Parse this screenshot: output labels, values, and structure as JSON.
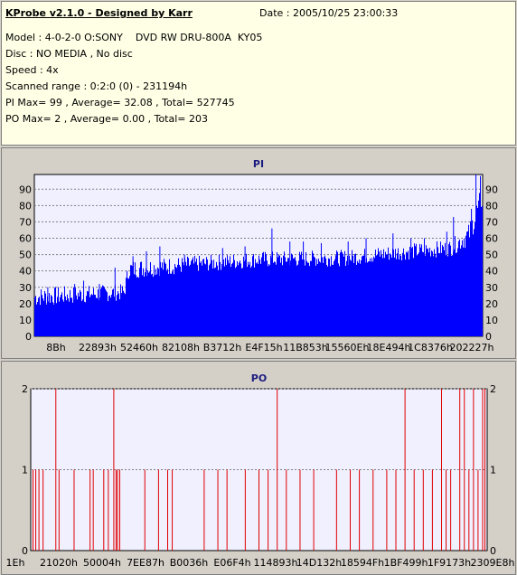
{
  "header": {
    "title": "KProbe v2.1.0 - Designed by Karr",
    "date": "Date : 2005/10/25 23:00:33",
    "model": "Model : 4-0-2-0 O:SONY    DVD RW DRU-800A  KY05",
    "disc": "Disc : NO MEDIA , No disc",
    "speed": "Speed : 4x",
    "range": "Scanned range : 0:2:0 (0) - 231194h",
    "pi_stats": "PI Max= 99 , Average= 32.08 , Total= 527745",
    "po_stats": "PO Max= 2 , Average= 0.00 , Total= 203"
  },
  "colors": {
    "pi_bar": "#0000ff",
    "po_bar": "#e00000",
    "plot_bg": "#f0f0ff",
    "title": "#1c1c80"
  },
  "chart_data": [
    {
      "type": "bar",
      "title": "PI",
      "ylim": [
        0,
        99
      ],
      "yticks": [
        0,
        10,
        20,
        30,
        40,
        50,
        60,
        70,
        80,
        90
      ],
      "grid": true,
      "xtick_labels": [
        "8Bh",
        "22893h",
        "52460h",
        "82108h",
        "B3712h",
        "E4F15h",
        "11B853h",
        "15560Eh",
        "18E494h",
        "1C8376h",
        "202227h"
      ],
      "profile": [
        {
          "x": 0.0,
          "base": 24,
          "spread": 6
        },
        {
          "x": 0.2,
          "base": 27,
          "spread": 5
        },
        {
          "x": 0.21,
          "base": 41,
          "spread": 6
        },
        {
          "x": 0.4,
          "base": 45,
          "spread": 5
        },
        {
          "x": 0.5,
          "base": 47,
          "spread": 5
        },
        {
          "x": 0.7,
          "base": 48,
          "spread": 5
        },
        {
          "x": 0.8,
          "base": 51,
          "spread": 5
        },
        {
          "x": 0.93,
          "base": 54,
          "spread": 5
        },
        {
          "x": 0.97,
          "base": 62,
          "spread": 7
        },
        {
          "x": 1.0,
          "base": 85,
          "spread": 8
        }
      ],
      "spikes": [
        {
          "x": 0.03,
          "value": 30
        },
        {
          "x": 0.09,
          "value": 32
        },
        {
          "x": 0.11,
          "value": 34
        },
        {
          "x": 0.145,
          "value": 32
        },
        {
          "x": 0.18,
          "value": 42
        },
        {
          "x": 0.22,
          "value": 49
        },
        {
          "x": 0.25,
          "value": 52
        },
        {
          "x": 0.28,
          "value": 55
        },
        {
          "x": 0.335,
          "value": 50
        },
        {
          "x": 0.42,
          "value": 54
        },
        {
          "x": 0.47,
          "value": 55
        },
        {
          "x": 0.53,
          "value": 66
        },
        {
          "x": 0.57,
          "value": 58
        },
        {
          "x": 0.6,
          "value": 58
        },
        {
          "x": 0.64,
          "value": 57
        },
        {
          "x": 0.7,
          "value": 58
        },
        {
          "x": 0.74,
          "value": 60
        },
        {
          "x": 0.8,
          "value": 63
        },
        {
          "x": 0.84,
          "value": 60
        },
        {
          "x": 0.87,
          "value": 60
        },
        {
          "x": 0.92,
          "value": 64
        },
        {
          "x": 0.935,
          "value": 73
        },
        {
          "x": 0.975,
          "value": 78
        },
        {
          "x": 0.985,
          "value": 99
        },
        {
          "x": 0.995,
          "value": 98
        }
      ]
    },
    {
      "type": "bar",
      "title": "PO",
      "ylim": [
        0,
        2
      ],
      "yticks": [
        0,
        1,
        2
      ],
      "grid": true,
      "xtick_labels": [
        "1Eh",
        "21020h",
        "50004h",
        "7EE87h",
        "B0036h",
        "E06F4h",
        "114893h",
        "14D132h",
        "18594Fh",
        "1BF499h",
        "1F9173h",
        "2309E8h"
      ],
      "x_fraction": [
        0.005,
        0.011,
        0.018,
        0.027,
        0.055,
        0.062,
        0.095,
        0.13,
        0.137,
        0.16,
        0.17,
        0.182,
        0.187,
        0.19,
        0.195,
        0.25,
        0.28,
        0.3,
        0.31,
        0.38,
        0.41,
        0.43,
        0.47,
        0.5,
        0.52,
        0.54,
        0.56,
        0.59,
        0.62,
        0.67,
        0.7,
        0.72,
        0.75,
        0.78,
        0.8,
        0.82,
        0.84,
        0.86,
        0.88,
        0.9,
        0.91,
        0.92,
        0.94,
        0.95,
        0.96,
        0.97,
        0.98,
        0.99,
        0.995
      ],
      "values": [
        1,
        1,
        1,
        1,
        2,
        1,
        1,
        1,
        1,
        1,
        1,
        2,
        1,
        1,
        1,
        1,
        1,
        1,
        1,
        1,
        1,
        1,
        1,
        1,
        1,
        2,
        1,
        1,
        1,
        1,
        1,
        1,
        1,
        1,
        1,
        2,
        1,
        1,
        1,
        2,
        1,
        1,
        2,
        2,
        1,
        2,
        1,
        2,
        2
      ]
    }
  ]
}
